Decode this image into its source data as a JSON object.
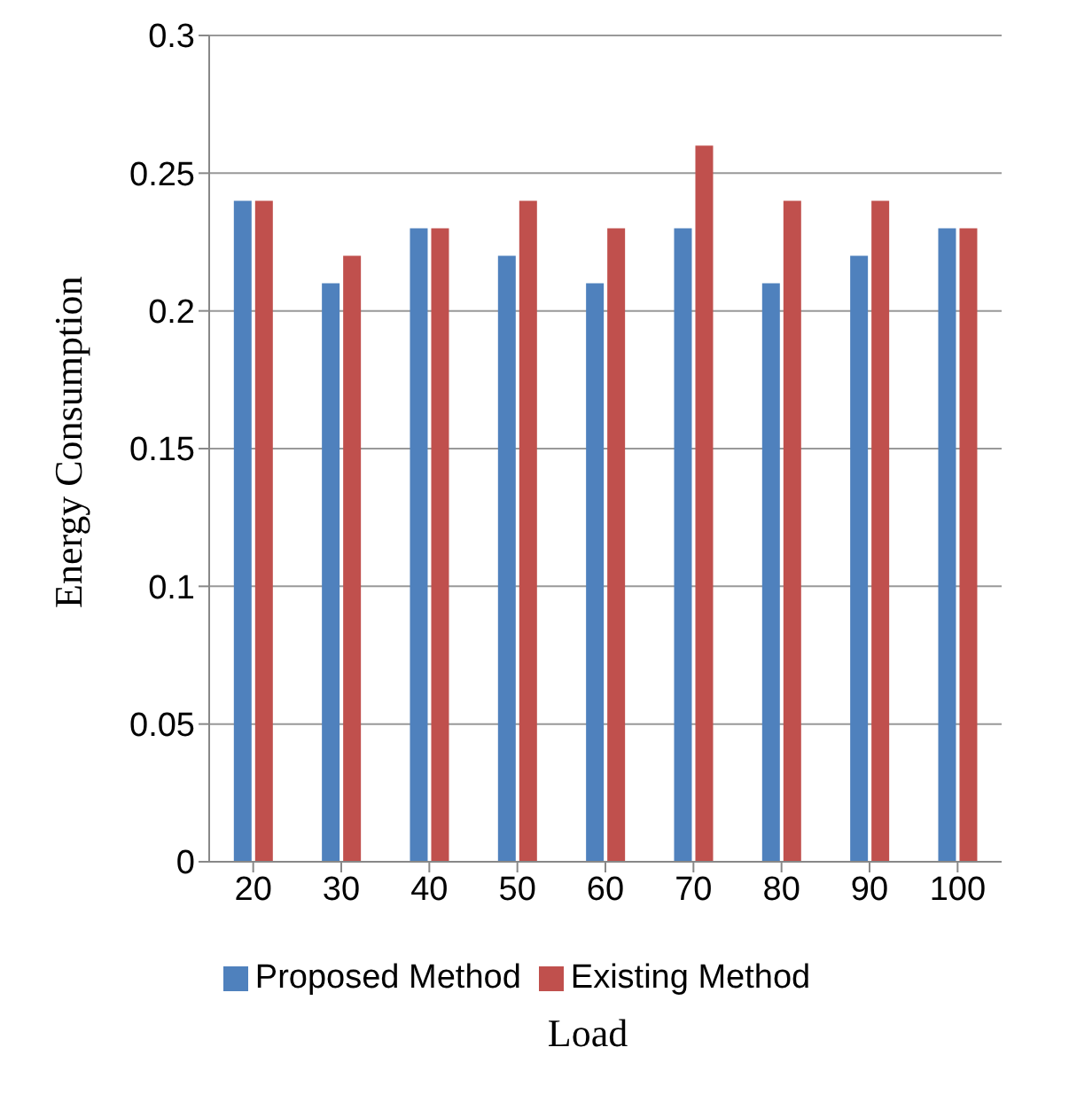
{
  "chart_data": {
    "type": "bar",
    "xlabel": "Load",
    "ylabel": "Energy Consumption",
    "categories": [
      "20",
      "30",
      "40",
      "50",
      "60",
      "70",
      "80",
      "90",
      "100"
    ],
    "series": [
      {
        "name": "Proposed Method",
        "color": "#4f81bd",
        "values": [
          0.24,
          0.21,
          0.23,
          0.22,
          0.21,
          0.23,
          0.21,
          0.22,
          0.23
        ]
      },
      {
        "name": "Existing Method",
        "color": "#c0504d",
        "values": [
          0.24,
          0.22,
          0.23,
          0.24,
          0.23,
          0.26,
          0.24,
          0.24,
          0.23
        ]
      }
    ],
    "ylim": [
      0,
      0.3
    ],
    "yticks": [
      0,
      0.05,
      0.1,
      0.15,
      0.2,
      0.25,
      0.3
    ],
    "grid": "y",
    "legend": "bottom"
  }
}
